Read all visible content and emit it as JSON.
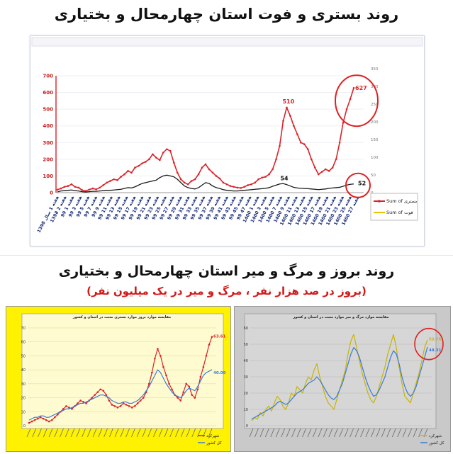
{
  "headings": {
    "top_title": "روند بستری و فوت استان چهارمحال و بختیاری",
    "bottom_title": "روند بروز و مرگ و میر استان چهارمحال و بختیاری",
    "bottom_subtitle": "(بروز در صد هزار نفر ، مرگ و میر در یک میلیون نفر)"
  },
  "colors": {
    "red_series": "#d9242a",
    "dark_series": "#1a1a1a",
    "yellow_bg": "#fff200",
    "gray_bg": "#c9c9c9",
    "blue_series": "#3b7bd4",
    "olive_series": "#c8b400",
    "circle": "#e02020"
  },
  "chart_data": [
    {
      "type": "line",
      "left_axis_ticks": [
        0,
        100,
        200,
        300,
        400,
        500,
        600,
        700
      ],
      "right_axis_ticks": [
        0,
        50,
        100,
        150,
        200,
        250,
        300,
        350
      ],
      "ylim": [
        0,
        700
      ],
      "legend": [
        "Sum of بستری",
        "Sum of فوت"
      ],
      "x_tick_labels": [
        "هفته 1 سال 1398",
        "1398 هفته 2",
        "99 هفته 1",
        "99 هفته 3",
        "99 هفته 5",
        "99 هفته 7",
        "99 هفته 9",
        "99 هفته 11",
        "99 هفته 13",
        "99 هفته 15",
        "99 هفته 17",
        "99 هفته 19",
        "99 هفته 21",
        "99 هفته 23",
        "99 هفته 25",
        "99 هفته 27",
        "99 هفته 29",
        "99 هفته 31",
        "99 هفته 33",
        "99 هفته 35",
        "99 هفته 37",
        "99 هفته 39",
        "99 هفته 41",
        "99 هفته 43",
        "99 هفته 45",
        "99 هفته 47",
        "1400 هفته 1",
        "1400 هفته 3",
        "1400 هفته 5",
        "1400 هفته 7",
        "1400 هفته 9",
        "1400 هفته 11",
        "1400 هفته 13",
        "1400 هفته 15",
        "1400 هفته 17",
        "1400 هفته 19",
        "1400 هفته 21",
        "1400 هفته 23",
        "1400 هفته 25",
        "1400 هفته 27"
      ],
      "series": [
        {
          "name": "Sum of بستری",
          "values": [
            18,
            25,
            35,
            40,
            50,
            35,
            30,
            15,
            10,
            18,
            25,
            20,
            30,
            45,
            60,
            70,
            80,
            75,
            95,
            110,
            130,
            120,
            150,
            160,
            175,
            185,
            200,
            230,
            210,
            195,
            240,
            260,
            250,
            180,
            120,
            80,
            60,
            50,
            70,
            80,
            110,
            150,
            170,
            140,
            120,
            100,
            85,
            60,
            50,
            40,
            35,
            30,
            28,
            35,
            45,
            50,
            60,
            80,
            90,
            95,
            110,
            140,
            200,
            280,
            430,
            510,
            460,
            400,
            350,
            300,
            290,
            260,
            200,
            150,
            110,
            125,
            140,
            130,
            150,
            200,
            300,
            420,
            500,
            560,
            627
          ]
        },
        {
          "name": "Sum of فوت",
          "values": [
            5,
            10,
            12,
            14,
            16,
            12,
            10,
            6,
            4,
            6,
            8,
            8,
            10,
            12,
            14,
            14,
            16,
            18,
            20,
            25,
            30,
            28,
            35,
            45,
            55,
            60,
            65,
            70,
            75,
            90,
            100,
            105,
            100,
            95,
            80,
            60,
            40,
            30,
            25,
            22,
            30,
            45,
            60,
            55,
            40,
            30,
            25,
            18,
            14,
            12,
            10,
            10,
            12,
            14,
            16,
            18,
            20,
            22,
            24,
            26,
            30,
            38,
            45,
            52,
            54,
            48,
            40,
            32,
            28,
            26,
            25,
            24,
            22,
            20,
            18,
            20,
            22,
            26,
            28,
            30,
            32,
            38,
            45,
            50,
            52
          ]
        }
      ],
      "annotations": [
        "627",
        "510",
        "54",
        "52"
      ]
    },
    {
      "type": "line",
      "panel_label": "مقایسه موارد بروز موارد بستری مثبت در استان و کشور",
      "y_ticks": [
        0,
        10,
        20,
        30,
        40,
        50,
        60,
        70
      ],
      "ylim": [
        0,
        70
      ],
      "legend": [
        "شهرکرد",
        "کل کشور"
      ],
      "series": [
        {
          "name": "شهرکرد",
          "values": [
            2,
            3,
            4,
            5,
            6,
            5,
            4,
            3,
            4,
            6,
            8,
            10,
            12,
            14,
            13,
            12,
            14,
            16,
            18,
            17,
            16,
            18,
            20,
            22,
            24,
            26,
            25,
            22,
            18,
            15,
            14,
            13,
            14,
            16,
            15,
            14,
            13,
            14,
            16,
            18,
            20,
            24,
            30,
            38,
            48,
            55,
            50,
            42,
            36,
            30,
            26,
            22,
            20,
            18,
            24,
            30,
            28,
            22,
            20,
            26,
            35,
            42,
            50,
            58,
            63.61
          ]
        },
        {
          "name": "کل کشور",
          "values": [
            4,
            5,
            6,
            6,
            7,
            7,
            6,
            6,
            7,
            8,
            9,
            10,
            11,
            12,
            12,
            13,
            14,
            15,
            16,
            16,
            17,
            18,
            19,
            20,
            21,
            22,
            22,
            21,
            20,
            18,
            17,
            16,
            16,
            17,
            17,
            16,
            16,
            17,
            18,
            20,
            22,
            25,
            28,
            32,
            36,
            40,
            38,
            34,
            30,
            27,
            24,
            22,
            21,
            20,
            22,
            25,
            27,
            26,
            25,
            28,
            32,
            36,
            38,
            39,
            40.09
          ]
        }
      ],
      "annotations": [
        "63.61",
        "40.09"
      ]
    },
    {
      "type": "line",
      "panel_label": "مقایسه موارد مرگ و میر موارد مثبت در استان و کشور",
      "y_ticks": [
        0,
        10,
        20,
        30,
        40,
        50,
        60
      ],
      "ylim": [
        0,
        60
      ],
      "legend": [
        "شهرکرد",
        "کل کشور"
      ],
      "series": [
        {
          "name": "شهرکرد",
          "values": [
            3,
            5,
            4,
            8,
            6,
            10,
            12,
            9,
            14,
            18,
            16,
            12,
            10,
            14,
            20,
            18,
            24,
            22,
            20,
            26,
            30,
            28,
            34,
            38,
            30,
            24,
            18,
            14,
            12,
            10,
            16,
            22,
            28,
            34,
            44,
            52,
            56,
            48,
            40,
            32,
            26,
            20,
            16,
            14,
            18,
            24,
            30,
            36,
            44,
            50,
            56,
            48,
            36,
            26,
            18,
            16,
            14,
            20,
            26,
            32,
            40,
            48,
            52.76
          ]
        },
        {
          "name": "کل کشور",
          "values": [
            4,
            5,
            6,
            7,
            8,
            9,
            10,
            11,
            12,
            14,
            15,
            14,
            13,
            14,
            16,
            18,
            20,
            21,
            22,
            24,
            26,
            27,
            28,
            30,
            28,
            25,
            22,
            19,
            17,
            16,
            18,
            22,
            26,
            32,
            38,
            44,
            48,
            46,
            42,
            36,
            30,
            25,
            21,
            18,
            19,
            22,
            26,
            30,
            36,
            42,
            46,
            44,
            38,
            30,
            24,
            20,
            18,
            20,
            24,
            30,
            36,
            42,
            48.31
          ]
        }
      ],
      "annotations": [
        "52.76",
        "48.31"
      ]
    }
  ]
}
